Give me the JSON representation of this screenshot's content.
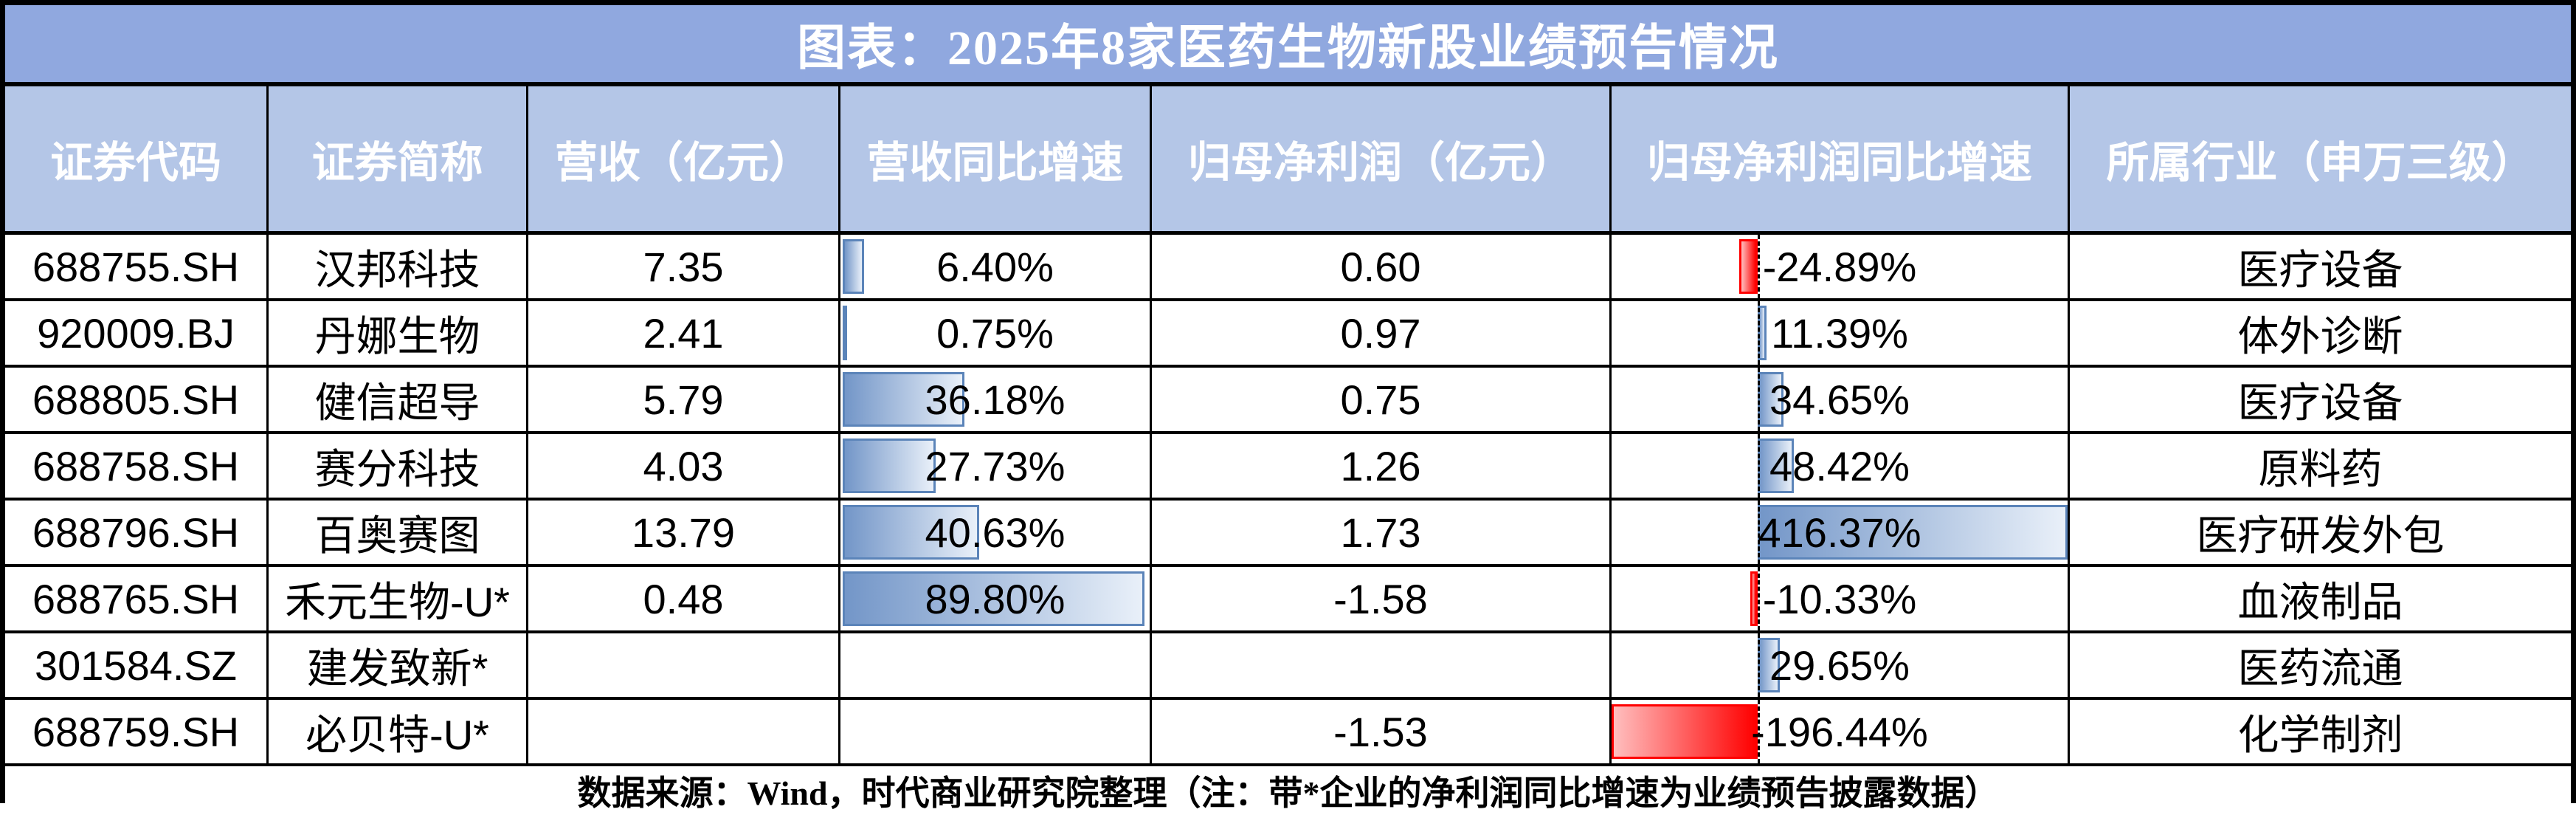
{
  "chart_data": {
    "type": "table",
    "title": "图表：2025年8家医药生物新股业绩预告情况",
    "columns": [
      "证券代码",
      "证券简称",
      "营收（亿元）",
      "营收同比增速",
      "归母净利润（亿元）",
      "归母净利润同比增速",
      "所属行业（申万三级）"
    ],
    "rows": [
      {
        "code": "688755.SH",
        "name": "汉邦科技",
        "revenue": "7.35",
        "rev_growth": "6.40%",
        "net_profit": "0.60",
        "np_growth": "-24.89%",
        "industry": "医疗设备"
      },
      {
        "code": "920009.BJ",
        "name": "丹娜生物",
        "revenue": "2.41",
        "rev_growth": "0.75%",
        "net_profit": "0.97",
        "np_growth": "11.39%",
        "industry": "体外诊断"
      },
      {
        "code": "688805.SH",
        "name": "健信超导",
        "revenue": "5.79",
        "rev_growth": "36.18%",
        "net_profit": "0.75",
        "np_growth": "34.65%",
        "industry": "医疗设备"
      },
      {
        "code": "688758.SH",
        "name": "赛分科技",
        "revenue": "4.03",
        "rev_growth": "27.73%",
        "net_profit": "1.26",
        "np_growth": "48.42%",
        "industry": "原料药"
      },
      {
        "code": "688796.SH",
        "name": "百奥赛图",
        "revenue": "13.79",
        "rev_growth": "40.63%",
        "net_profit": "1.73",
        "np_growth": "416.37%",
        "industry": "医疗研发外包"
      },
      {
        "code": "688765.SH",
        "name": "禾元生物-U*",
        "revenue": "0.48",
        "rev_growth": "89.80%",
        "net_profit": "-1.58",
        "np_growth": "-10.33%",
        "industry": "血液制品"
      },
      {
        "code": "301584.SZ",
        "name": "建发致新*",
        "revenue": "",
        "rev_growth": "",
        "net_profit": "",
        "np_growth": "29.65%",
        "industry": "医药流通"
      },
      {
        "code": "688759.SH",
        "name": "必贝特-U*",
        "revenue": "",
        "rev_growth": "",
        "net_profit": "-1.53",
        "np_growth": "-196.44%",
        "industry": "化学制剂"
      }
    ],
    "databars": {
      "rev_growth": {
        "style": "blue-gradient-from-left-edge",
        "scale_max": 89.8
      },
      "np_growth": {
        "style": "blue-positive-red-negative-from-dashed-axis",
        "axis_min": -196.44,
        "axis_max": 416.37
      }
    },
    "source_note": "数据来源：Wind，时代商业研究院整理（注：带*企业的净利润同比增速为业绩预告披露数据）"
  },
  "colors": {
    "title_bg": "#90A8DF",
    "header_bg": "#B4C6E7",
    "header_text": "#FFFFFF",
    "positive_bar_fill_start": "#7396C8",
    "positive_bar_fill_end": "#E9F0F9",
    "positive_bar_border": "#5B84B9",
    "negative_bar_fill": "#FF0000",
    "negative_bar_fill_light": "#FFBFBF",
    "grid_line": "#000000"
  }
}
